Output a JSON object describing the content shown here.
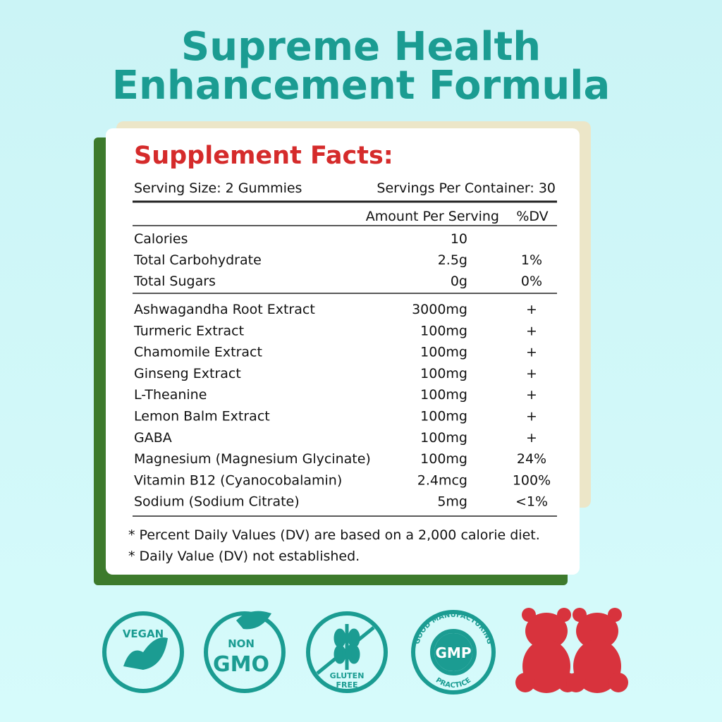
{
  "header": {
    "title_line1": "Supreme Health",
    "title_line2": "Enhancement Formula"
  },
  "facts": {
    "title": "Supplement Facts:",
    "serving_size": "Serving Size: 2 Gummies",
    "servings_per_container": "Servings Per Container: 30",
    "column_amount": "Amount Per Serving",
    "column_dv": "%DV",
    "nutrients": [
      {
        "name": "Calories",
        "amount": "10"
      },
      {
        "name": "Total Carbohydrate",
        "amount": "2.5g",
        "dv": "1%"
      },
      {
        "name": "Total Sugars",
        "amount": "0g",
        "dv": "0%"
      }
    ],
    "ingredients": [
      {
        "name": "Ashwagandha Root Extract",
        "amount": "3000mg",
        "dv": "+"
      },
      {
        "name": "Turmeric Extract",
        "amount": "100mg",
        "dv": "+"
      },
      {
        "name": "Chamomile Extract",
        "amount": "100mg",
        "dv": "+"
      },
      {
        "name": "Ginseng Extract",
        "amount": "100mg",
        "dv": "+"
      },
      {
        "name": "L-Theanine",
        "amount": "100mg",
        "dv": "+"
      },
      {
        "name": "Lemon Balm Extract",
        "amount": "100mg",
        "dv": "+"
      },
      {
        "name": "GABA",
        "amount": "100mg",
        "dv": "+"
      },
      {
        "name": "Magnesium (Magnesium Glycinate)",
        "amount": "100mg",
        "dv": "24%"
      },
      {
        "name": "Vitamin B12 (Cyanocobalamin)",
        "amount": "2.4mcg",
        "dv": "100%"
      },
      {
        "name": "Sodium (Sodium Citrate)",
        "amount": "5mg",
        "dv": "<1%"
      }
    ],
    "footnotes": [
      "* Percent Daily Values (DV) are based on a 2,000 calorie diet.",
      "* Daily Value (DV) not established."
    ]
  },
  "badges": {
    "vegan": "VEGAN",
    "non_gmo_top": "NON",
    "non_gmo_bottom": "GMO",
    "gluten_top": "GLUTEN",
    "gluten_bottom": "FREE",
    "gmp": "GMP",
    "gmp_ring_top": "GOOD MANUFACTURING",
    "gmp_ring_bottom": "PRACTICE"
  }
}
